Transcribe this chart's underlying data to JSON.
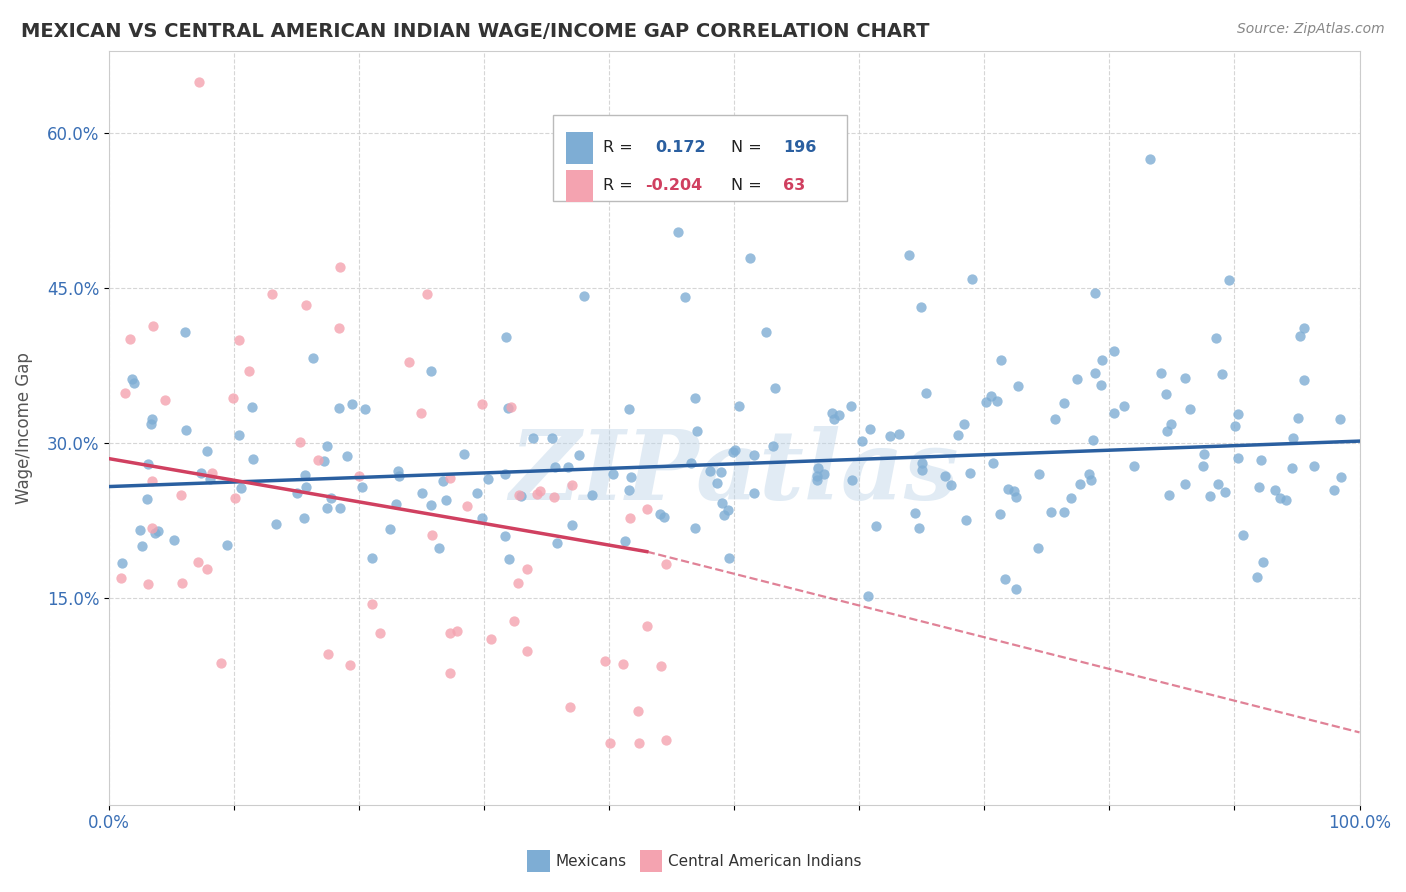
{
  "title": "MEXICAN VS CENTRAL AMERICAN INDIAN WAGE/INCOME GAP CORRELATION CHART",
  "source": "Source: ZipAtlas.com",
  "ylabel": "Wage/Income Gap",
  "xlim": [
    0.0,
    1.0
  ],
  "ylim": [
    -0.05,
    0.68
  ],
  "yticks": [
    0.15,
    0.3,
    0.45,
    0.6
  ],
  "ytick_labels": [
    "15.0%",
    "30.0%",
    "45.0%",
    "60.0%"
  ],
  "blue_color": "#7eadd4",
  "pink_color": "#f4a3b0",
  "blue_line_color": "#2a5fa0",
  "pink_line_color": "#d04060",
  "R_blue": 0.172,
  "N_blue": 196,
  "R_pink": -0.204,
  "N_pink": 63,
  "watermark": "ZIPatlas",
  "background_color": "#ffffff",
  "grid_color": "#cccccc",
  "blue_trend_start": 0.258,
  "blue_trend_end": 0.302,
  "pink_trend_start": 0.285,
  "pink_trend_solid_end_x": 0.43,
  "pink_trend_solid_end_y": 0.195,
  "pink_trend_dashed_end_y": 0.02
}
